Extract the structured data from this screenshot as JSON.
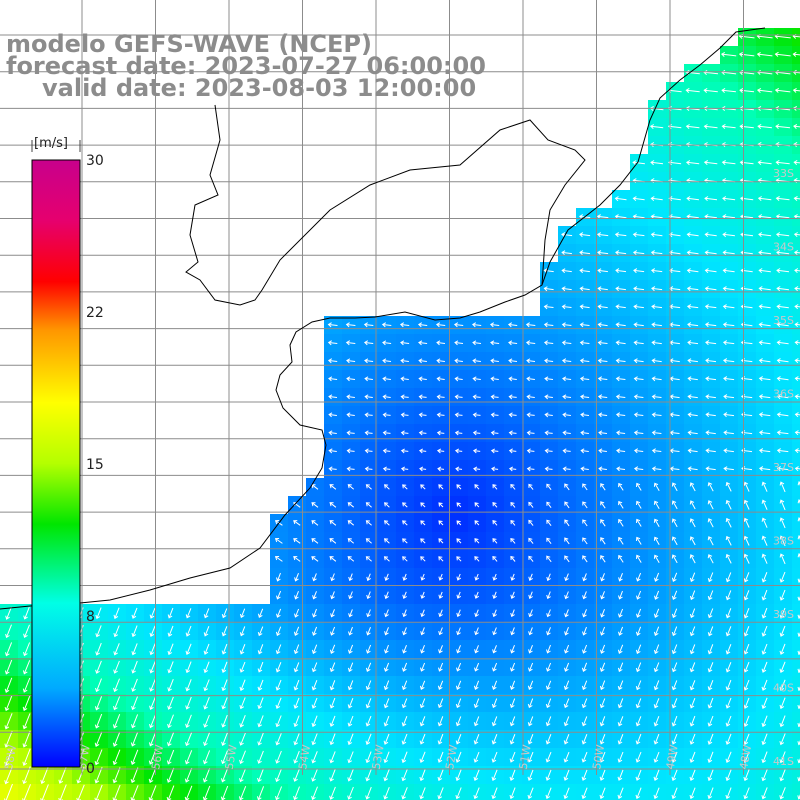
{
  "header": {
    "model": "modelo GEFS-WAVE (NCEP)",
    "forecast": "forecast date: 2023-07-27 06:00:00",
    "valid": "valid date: 2023-08-03 12:00:00"
  },
  "colorbar": {
    "unit": "[m/s]",
    "ticks": [
      {
        "label": "30"
      },
      {
        "label": "22"
      },
      {
        "label": "15"
      },
      {
        "label": "8"
      },
      {
        "label": "0"
      }
    ],
    "stops": [
      "#0000ff",
      "#00c8ff",
      "#00ffe6",
      "#00e600",
      "#b4ff00",
      "#ffff00",
      "#ff9600",
      "#ff0000",
      "#e6006e",
      "#c8008c"
    ]
  },
  "map": {
    "land_color": "#ffffff",
    "coastline_color": "#000000",
    "grid_color": "#8c8c8c",
    "lat_labels": [
      "33S",
      "34S",
      "35S",
      "36S",
      "37S",
      "38S",
      "39S",
      "40S",
      "41S"
    ],
    "lon_labels": [
      "58W",
      "57W",
      "56W",
      "55W",
      "54W",
      "53W",
      "52W",
      "51W",
      "50W",
      "49W",
      "48W"
    ]
  }
}
